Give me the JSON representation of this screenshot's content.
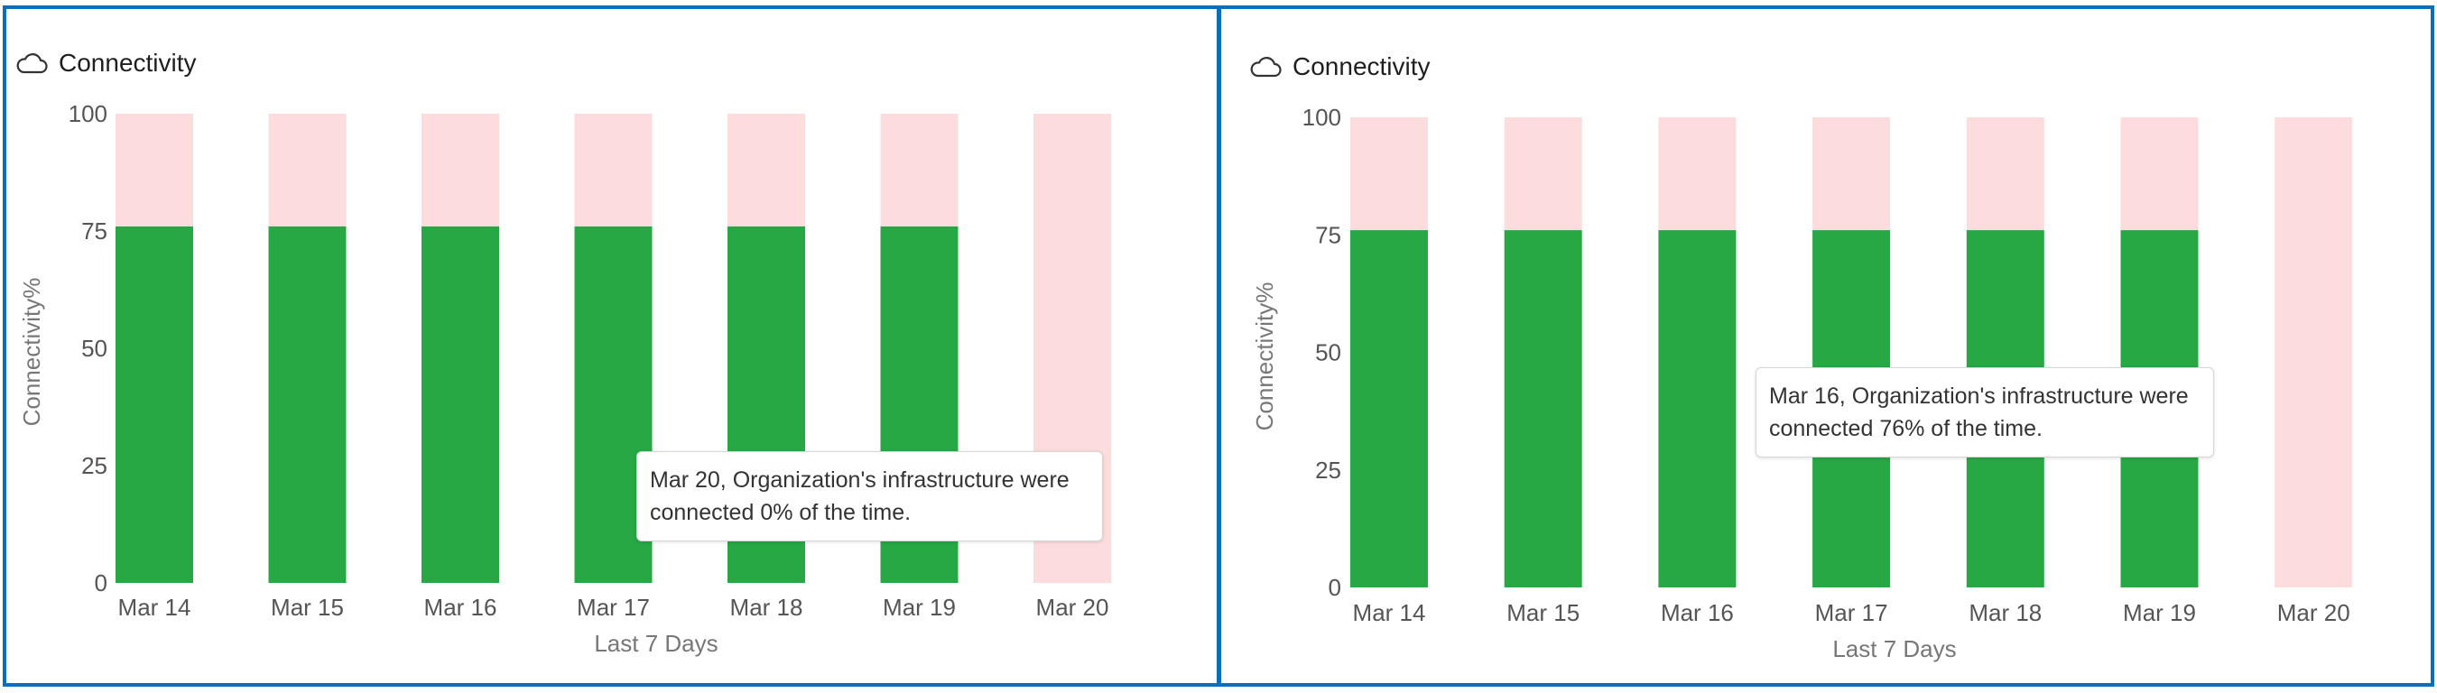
{
  "colors": {
    "connected": "#28a745",
    "disconnected": "#fcdcdc",
    "border": "#0a6ebd"
  },
  "panels": [
    {
      "header": {
        "icon": "cloud-icon",
        "title": "Connectivity"
      },
      "tooltip": {
        "text": "Mar 20, Organization's infrastructure were connected 0% of the time."
      },
      "chart_data": {
        "type": "bar",
        "stacked": true,
        "title": "Connectivity",
        "xlabel": "Last 7 Days",
        "ylabel": "Connectivity%",
        "categories": [
          "Mar 14",
          "Mar 15",
          "Mar 16",
          "Mar 17",
          "Mar 18",
          "Mar 19",
          "Mar 20"
        ],
        "series": [
          {
            "values": [
              76,
              76,
              76,
              76,
              76,
              76,
              0
            ],
            "color": "#28a745"
          },
          {
            "values": [
              24,
              24,
              24,
              24,
              24,
              24,
              100
            ],
            "color": "#fcdcdc"
          }
        ],
        "yticks": [
          0,
          25,
          50,
          75,
          100
        ],
        "ylim": [
          0,
          100
        ],
        "grid": false,
        "legend": "none"
      }
    },
    {
      "header": {
        "icon": "cloud-icon",
        "title": "Connectivity"
      },
      "tooltip": {
        "text": "Mar 16, Organization's infrastructure were connected 76% of the time."
      },
      "chart_data": {
        "type": "bar",
        "stacked": true,
        "title": "Connectivity",
        "xlabel": "Last 7 Days",
        "ylabel": "Connectivity%",
        "categories": [
          "Mar 14",
          "Mar 15",
          "Mar 16",
          "Mar 17",
          "Mar 18",
          "Mar 19",
          "Mar 20"
        ],
        "series": [
          {
            "values": [
              76,
              76,
              76,
              76,
              76,
              76,
              0
            ],
            "color": "#28a745"
          },
          {
            "values": [
              24,
              24,
              24,
              24,
              24,
              24,
              100
            ],
            "color": "#fcdcdc"
          }
        ],
        "yticks": [
          0,
          25,
          50,
          75,
          100
        ],
        "ylim": [
          0,
          100
        ],
        "grid": false,
        "legend": "none"
      }
    }
  ]
}
